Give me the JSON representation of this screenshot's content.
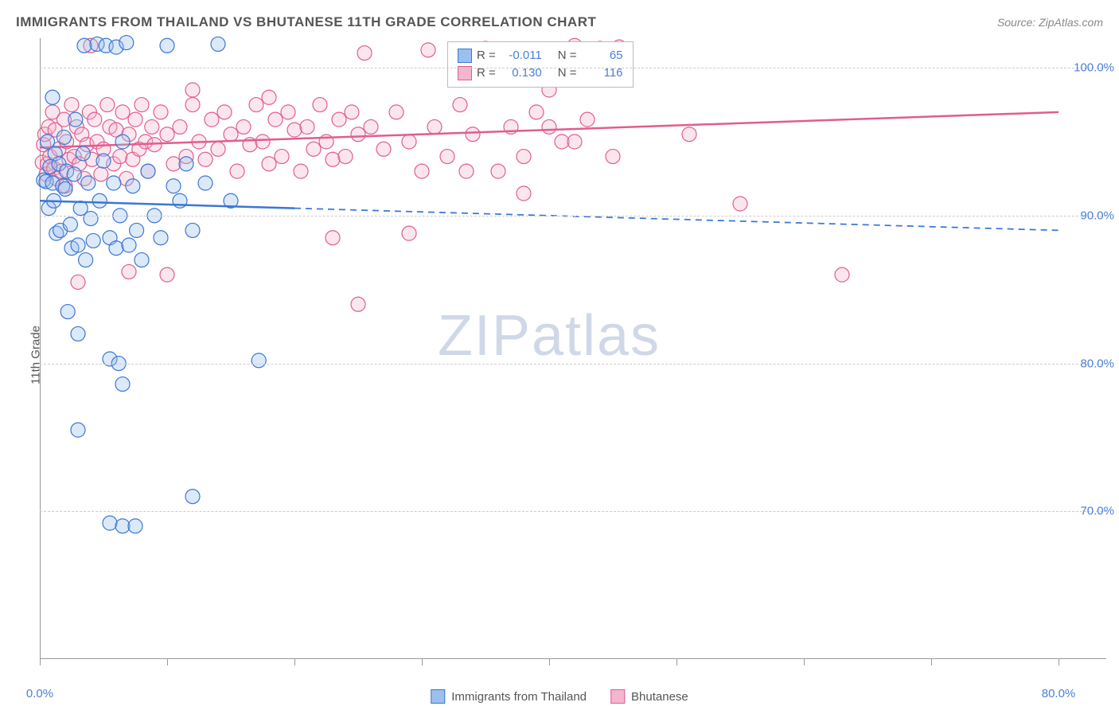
{
  "header": {
    "title": "IMMIGRANTS FROM THAILAND VS BHUTANESE 11TH GRADE CORRELATION CHART",
    "source": "Source: ZipAtlas.com"
  },
  "watermark": {
    "part1": "ZIP",
    "part2": "atlas"
  },
  "chart": {
    "type": "scatter",
    "ylabel": "11th Grade",
    "background_color": "#ffffff",
    "grid_color": "#cccccc",
    "axis_color": "#999999",
    "tick_label_color": "#4a7fd8",
    "xlim": [
      0,
      80
    ],
    "ylim": [
      60,
      102
    ],
    "xticks": [
      0,
      10,
      20,
      30,
      40,
      50,
      60,
      70,
      80
    ],
    "xtick_labels": {
      "0": "0.0%",
      "80": "80.0%"
    },
    "yticks": [
      70,
      80,
      90,
      100
    ],
    "ytick_labels": {
      "70": "70.0%",
      "80": "80.0%",
      "90": "90.0%",
      "100": "100.0%"
    },
    "marker_radius": 9,
    "marker_stroke_width": 1.2,
    "marker_fill_opacity": 0.35,
    "line_width": 2.5,
    "series": {
      "thailand": {
        "label": "Immigrants from Thailand",
        "stroke": "#3b76d6",
        "fill": "#9cc0ee",
        "R": "-0.011",
        "N": "65",
        "trend": {
          "y_at_x0": 91.0,
          "y_at_x80": 89.0,
          "solid_until_x": 20.0
        },
        "points": [
          [
            0.3,
            92.4
          ],
          [
            0.5,
            92.3
          ],
          [
            0.6,
            95.0
          ],
          [
            0.7,
            90.5
          ],
          [
            0.8,
            93.3
          ],
          [
            1.0,
            92.2
          ],
          [
            1.0,
            98.0
          ],
          [
            1.1,
            91.0
          ],
          [
            1.2,
            94.2
          ],
          [
            1.3,
            88.8
          ],
          [
            1.5,
            93.5
          ],
          [
            1.6,
            89.0
          ],
          [
            1.8,
            92.0
          ],
          [
            1.9,
            95.3
          ],
          [
            2.0,
            91.8
          ],
          [
            2.1,
            93.0
          ],
          [
            2.4,
            89.4
          ],
          [
            2.5,
            87.8
          ],
          [
            2.7,
            92.8
          ],
          [
            2.8,
            96.5
          ],
          [
            3.0,
            88.0
          ],
          [
            3.2,
            90.5
          ],
          [
            3.4,
            94.2
          ],
          [
            3.5,
            101.5
          ],
          [
            3.6,
            87.0
          ],
          [
            3.8,
            92.2
          ],
          [
            4.0,
            89.8
          ],
          [
            4.2,
            88.3
          ],
          [
            4.5,
            101.6
          ],
          [
            4.7,
            91.0
          ],
          [
            5.0,
            93.7
          ],
          [
            5.2,
            101.5
          ],
          [
            5.5,
            88.5
          ],
          [
            5.8,
            92.2
          ],
          [
            6.0,
            87.8
          ],
          [
            6.0,
            101.4
          ],
          [
            6.3,
            90.0
          ],
          [
            6.5,
            95.0
          ],
          [
            6.8,
            101.7
          ],
          [
            7.0,
            88.0
          ],
          [
            7.3,
            92.0
          ],
          [
            7.6,
            89.0
          ],
          [
            8.0,
            87.0
          ],
          [
            8.5,
            93.0
          ],
          [
            9.0,
            90.0
          ],
          [
            9.5,
            88.5
          ],
          [
            10.0,
            101.5
          ],
          [
            10.5,
            92.0
          ],
          [
            11.0,
            91.0
          ],
          [
            11.5,
            93.5
          ],
          [
            12.0,
            89.0
          ],
          [
            13.0,
            92.2
          ],
          [
            14.0,
            101.6
          ],
          [
            15.0,
            91.0
          ],
          [
            2.2,
            83.5
          ],
          [
            3.0,
            82.0
          ],
          [
            5.5,
            80.3
          ],
          [
            6.2,
            80.0
          ],
          [
            6.5,
            78.6
          ],
          [
            17.2,
            80.2
          ],
          [
            3.0,
            75.5
          ],
          [
            12.0,
            71.0
          ],
          [
            5.5,
            69.2
          ],
          [
            6.5,
            69.0
          ],
          [
            7.5,
            69.0
          ]
        ]
      },
      "bhutanese": {
        "label": "Bhutanese",
        "stroke": "#e15d8e",
        "fill": "#f4b6ce",
        "R": "0.130",
        "N": "116",
        "trend": {
          "y_at_x0": 94.6,
          "y_at_x80": 97.0,
          "solid_until_x": 80.0
        },
        "points": [
          [
            0.2,
            93.6
          ],
          [
            0.3,
            94.8
          ],
          [
            0.4,
            95.5
          ],
          [
            0.5,
            92.8
          ],
          [
            0.6,
            93.5
          ],
          [
            0.7,
            96.0
          ],
          [
            0.8,
            94.0
          ],
          [
            1.0,
            97.0
          ],
          [
            1.1,
            93.2
          ],
          [
            1.2,
            95.8
          ],
          [
            1.3,
            92.5
          ],
          [
            1.5,
            94.5
          ],
          [
            1.7,
            93.0
          ],
          [
            1.9,
            96.5
          ],
          [
            2.0,
            92.0
          ],
          [
            2.1,
            95.0
          ],
          [
            2.3,
            93.8
          ],
          [
            2.5,
            97.5
          ],
          [
            2.7,
            94.0
          ],
          [
            2.9,
            96.0
          ],
          [
            3.1,
            93.5
          ],
          [
            3.3,
            95.5
          ],
          [
            3.5,
            92.5
          ],
          [
            3.7,
            94.8
          ],
          [
            3.9,
            97.0
          ],
          [
            4.1,
            93.8
          ],
          [
            4.3,
            96.5
          ],
          [
            4.5,
            95.0
          ],
          [
            4.8,
            92.8
          ],
          [
            5.0,
            94.5
          ],
          [
            5.3,
            97.5
          ],
          [
            5.5,
            96.0
          ],
          [
            5.8,
            93.5
          ],
          [
            6.0,
            95.8
          ],
          [
            6.3,
            94.0
          ],
          [
            6.5,
            97.0
          ],
          [
            6.8,
            92.5
          ],
          [
            7.0,
            95.5
          ],
          [
            7.3,
            93.8
          ],
          [
            7.5,
            96.5
          ],
          [
            7.8,
            94.5
          ],
          [
            8.0,
            97.5
          ],
          [
            8.3,
            95.0
          ],
          [
            8.5,
            93.0
          ],
          [
            8.8,
            96.0
          ],
          [
            9.0,
            94.8
          ],
          [
            9.5,
            97.0
          ],
          [
            10.0,
            95.5
          ],
          [
            10.5,
            93.5
          ],
          [
            11.0,
            96.0
          ],
          [
            11.5,
            94.0
          ],
          [
            12.0,
            97.5
          ],
          [
            12.5,
            95.0
          ],
          [
            13.0,
            93.8
          ],
          [
            13.5,
            96.5
          ],
          [
            14.0,
            94.5
          ],
          [
            14.5,
            97.0
          ],
          [
            15.0,
            95.5
          ],
          [
            15.5,
            93.0
          ],
          [
            16.0,
            96.0
          ],
          [
            16.5,
            94.8
          ],
          [
            17.0,
            97.5
          ],
          [
            17.5,
            95.0
          ],
          [
            18.0,
            93.5
          ],
          [
            18.5,
            96.5
          ],
          [
            19.0,
            94.0
          ],
          [
            19.5,
            97.0
          ],
          [
            20.0,
            95.8
          ],
          [
            20.5,
            93.0
          ],
          [
            21.0,
            96.0
          ],
          [
            21.5,
            94.5
          ],
          [
            22.0,
            97.5
          ],
          [
            22.5,
            95.0
          ],
          [
            23.0,
            93.8
          ],
          [
            23.5,
            96.5
          ],
          [
            24.0,
            94.0
          ],
          [
            24.5,
            97.0
          ],
          [
            25.0,
            95.5
          ],
          [
            25.5,
            101.0
          ],
          [
            26.0,
            96.0
          ],
          [
            27.0,
            94.5
          ],
          [
            28.0,
            97.0
          ],
          [
            29.0,
            95.0
          ],
          [
            30.0,
            93.0
          ],
          [
            30.5,
            101.2
          ],
          [
            31.0,
            96.0
          ],
          [
            32.0,
            94.0
          ],
          [
            33.0,
            97.5
          ],
          [
            33.5,
            93.0
          ],
          [
            34.0,
            95.5
          ],
          [
            35.0,
            101.3
          ],
          [
            36.0,
            93.0
          ],
          [
            37.0,
            96.0
          ],
          [
            38.0,
            94.0
          ],
          [
            39.0,
            97.0
          ],
          [
            40.0,
            98.5
          ],
          [
            41.0,
            95.0
          ],
          [
            42.0,
            101.5
          ],
          [
            43.0,
            96.5
          ],
          [
            44.0,
            101.3
          ],
          [
            45.0,
            94.0
          ],
          [
            45.5,
            101.4
          ],
          [
            38.0,
            91.5
          ],
          [
            40.0,
            96.0
          ],
          [
            42.0,
            95.0
          ],
          [
            3.0,
            85.5
          ],
          [
            7.0,
            86.2
          ],
          [
            10.0,
            86.0
          ],
          [
            23.0,
            88.5
          ],
          [
            29.0,
            88.8
          ],
          [
            25.0,
            84.0
          ],
          [
            51.0,
            95.5
          ],
          [
            55.0,
            90.8
          ],
          [
            63.0,
            86.0
          ],
          [
            4.0,
            101.5
          ],
          [
            12.0,
            98.5
          ],
          [
            18.0,
            98.0
          ]
        ]
      }
    }
  },
  "inner_legend": {
    "row1": {
      "r_label": "R =",
      "n_label": "N ="
    },
    "row2": {
      "r_label": "R =",
      "n_label": "N ="
    }
  }
}
